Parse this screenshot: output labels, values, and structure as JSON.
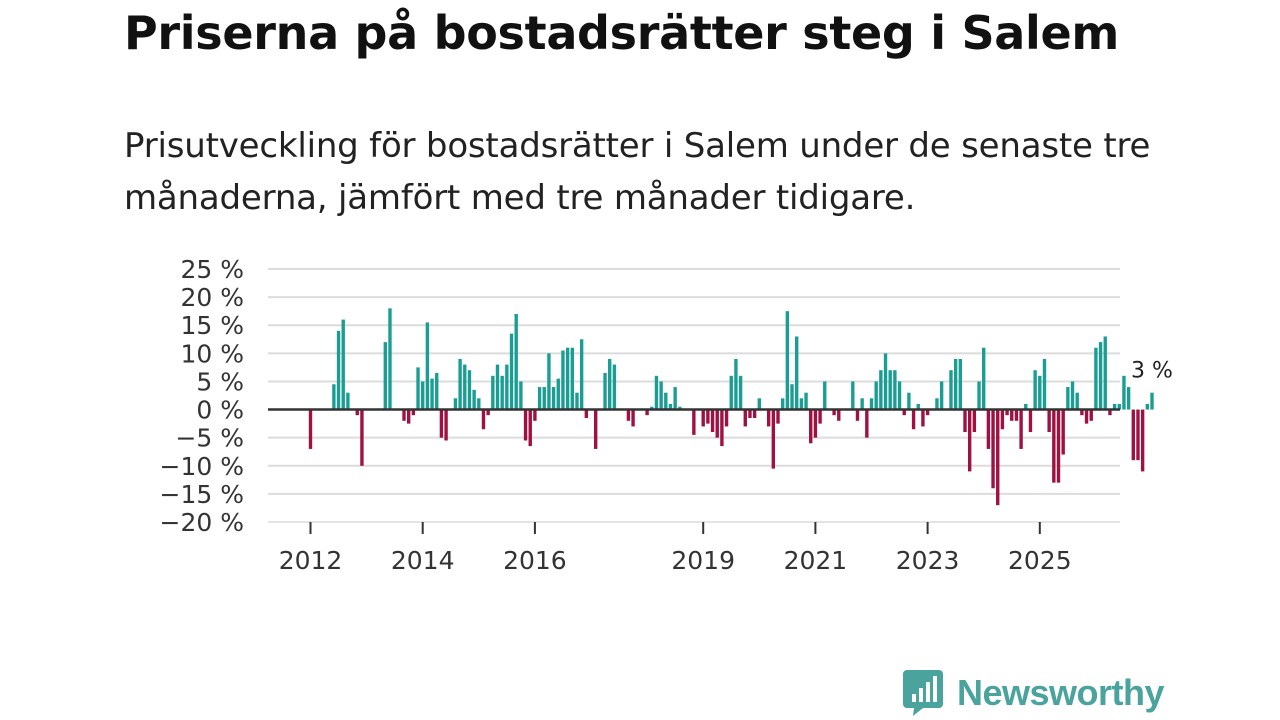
{
  "title": "Priserna på bostadsrätter steg i Salem",
  "subtitle": "Prisutveckling för bostadsrätter i Salem under de senaste tre månaderna, jämfört med tre månader tidigare.",
  "brand": {
    "name": "Newsworthy",
    "color": "#4aa39c",
    "icon": "bar-chart-speech-icon"
  },
  "chart_data": {
    "type": "bar",
    "title": "Priserna på bostadsrätter steg i Salem",
    "xlabel": "",
    "ylabel": "",
    "ylim": [
      -20,
      25
    ],
    "grid": true,
    "positive_color": "#1a9e94",
    "negative_color": "#a01040",
    "y_ticks": [
      {
        "value": 25,
        "label": "25 %"
      },
      {
        "value": 20,
        "label": "20 %"
      },
      {
        "value": 15,
        "label": "15 %"
      },
      {
        "value": 10,
        "label": "10 %"
      },
      {
        "value": 5,
        "label": "5 %"
      },
      {
        "value": 0,
        "label": "0 %"
      },
      {
        "value": -5,
        "label": "−5 %"
      },
      {
        "value": -10,
        "label": "−10 %"
      },
      {
        "value": -15,
        "label": "−15 %"
      },
      {
        "value": -20,
        "label": "−20 %"
      }
    ],
    "x_ticks": [
      {
        "year": 2012,
        "label": "2012"
      },
      {
        "year": 2014,
        "label": "2014"
      },
      {
        "year": 2016,
        "label": "2016"
      },
      {
        "year": 2019,
        "label": "2019"
      },
      {
        "year": 2021,
        "label": "2021"
      },
      {
        "year": 2023,
        "label": "2023"
      },
      {
        "year": 2025,
        "label": "2025"
      }
    ],
    "start_year": 2012,
    "start_month": 1,
    "values": [
      -7,
      null,
      null,
      null,
      null,
      4.5,
      14,
      16,
      3,
      null,
      -1,
      -10,
      null,
      null,
      null,
      null,
      12,
      18,
      null,
      null,
      -2,
      -2.5,
      -1,
      7.5,
      5,
      15.5,
      5.5,
      6.5,
      -5,
      -5.5,
      null,
      2,
      9,
      8,
      7,
      3.5,
      2,
      -3.5,
      -1,
      6,
      8,
      6,
      8,
      13.5,
      17,
      5,
      -5.5,
      -6.5,
      -2,
      4,
      4,
      10,
      4,
      5.5,
      10.5,
      11,
      11,
      3,
      12.5,
      -1.5,
      null,
      -7,
      null,
      6.5,
      9,
      8,
      null,
      null,
      -2,
      -3,
      null,
      null,
      -1,
      0.5,
      6,
      5,
      3,
      1,
      4,
      0.5,
      null,
      null,
      -4.5,
      null,
      -3,
      -2.5,
      -4,
      -5,
      -6.5,
      -3,
      6,
      9,
      6,
      -3,
      -1.5,
      -1.5,
      2,
      null,
      -3,
      -10.5,
      -2.5,
      2,
      17.5,
      4.5,
      13,
      2,
      3,
      -6,
      -5,
      -2.5,
      5,
      null,
      -1,
      -2,
      null,
      null,
      5,
      -2,
      2,
      -5,
      2,
      5,
      7,
      10,
      7,
      7,
      5,
      -1,
      3,
      -3.5,
      1,
      -3,
      -1,
      null,
      2,
      5,
      null,
      7,
      9,
      9,
      -4,
      -11,
      -4,
      5,
      11,
      -7,
      -14,
      -17,
      -3.5,
      -1,
      -2,
      -2,
      -7,
      1,
      -4,
      7,
      6,
      9,
      -4,
      -13,
      -13,
      -8,
      4,
      5,
      3,
      -1,
      -2.5,
      -2,
      11,
      12,
      13,
      -1,
      1,
      1,
      6,
      4,
      -9,
      -9,
      -11,
      1,
      3
    ],
    "annotation": {
      "label": "3 %",
      "value": 3
    }
  }
}
